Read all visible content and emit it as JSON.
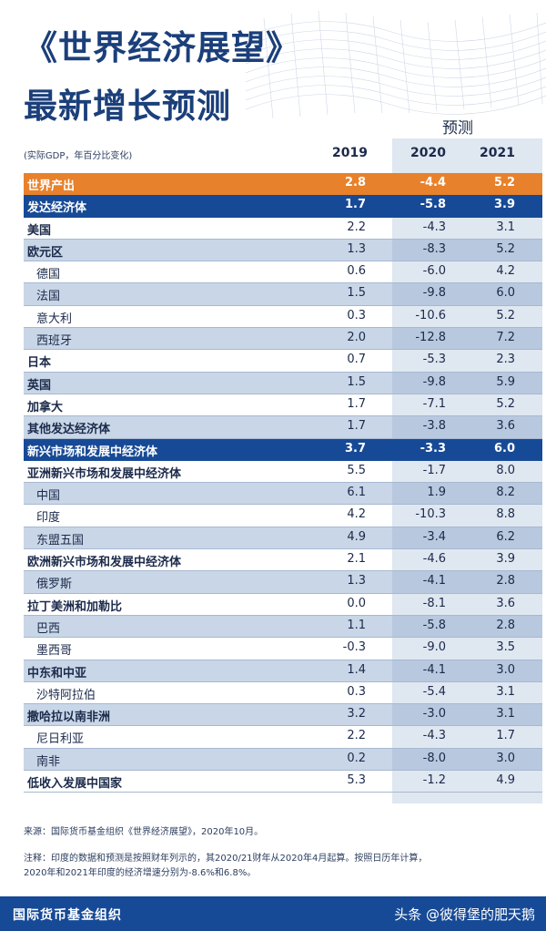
{
  "title_line1": "《世界经济展望》",
  "title_line2": "最新增长预测",
  "forecast_label": "预测",
  "unit_note": "(实际GDP，年百分比变化)",
  "chart_data": {
    "type": "table",
    "columns": [
      "2019",
      "2020",
      "2021"
    ],
    "rows": [
      {
        "label": "世界产出",
        "values": [
          "2.8",
          "-4.4",
          "5.2"
        ],
        "style": "world"
      },
      {
        "label": "发达经济体",
        "values": [
          "1.7",
          "-5.8",
          "3.9"
        ],
        "style": "group"
      },
      {
        "label": "美国",
        "values": [
          "2.2",
          "-4.3",
          "3.1"
        ],
        "style": "bold"
      },
      {
        "label": "欧元区",
        "values": [
          "1.3",
          "-8.3",
          "5.2"
        ],
        "style": "bold"
      },
      {
        "label": "德国",
        "values": [
          "0.6",
          "-6.0",
          "4.2"
        ],
        "style": "indent"
      },
      {
        "label": "法国",
        "values": [
          "1.5",
          "-9.8",
          "6.0"
        ],
        "style": "indent"
      },
      {
        "label": "意大利",
        "values": [
          "0.3",
          "-10.6",
          "5.2"
        ],
        "style": "indent"
      },
      {
        "label": "西班牙",
        "values": [
          "2.0",
          "-12.8",
          "7.2"
        ],
        "style": "indent"
      },
      {
        "label": "日本",
        "values": [
          "0.7",
          "-5.3",
          "2.3"
        ],
        "style": "bold"
      },
      {
        "label": "英国",
        "values": [
          "1.5",
          "-9.8",
          "5.9"
        ],
        "style": "bold"
      },
      {
        "label": "加拿大",
        "values": [
          "1.7",
          "-7.1",
          "5.2"
        ],
        "style": "bold"
      },
      {
        "label": "其他发达经济体",
        "values": [
          "1.7",
          "-3.8",
          "3.6"
        ],
        "style": "bold"
      },
      {
        "label": "新兴市场和发展中经济体",
        "values": [
          "3.7",
          "-3.3",
          "6.0"
        ],
        "style": "group"
      },
      {
        "label": "亚洲新兴市场和发展中经济体",
        "values": [
          "5.5",
          "-1.7",
          "8.0"
        ],
        "style": "bold"
      },
      {
        "label": "中国",
        "values": [
          "6.1",
          "1.9",
          "8.2"
        ],
        "style": "indent"
      },
      {
        "label": "印度",
        "values": [
          "4.2",
          "-10.3",
          "8.8"
        ],
        "style": "indent"
      },
      {
        "label": "东盟五国",
        "values": [
          "4.9",
          "-3.4",
          "6.2"
        ],
        "style": "indent"
      },
      {
        "label": "欧洲新兴市场和发展中经济体",
        "values": [
          "2.1",
          "-4.6",
          "3.9"
        ],
        "style": "bold"
      },
      {
        "label": "俄罗斯",
        "values": [
          "1.3",
          "-4.1",
          "2.8"
        ],
        "style": "indent"
      },
      {
        "label": "拉丁美洲和加勒比",
        "values": [
          "0.0",
          "-8.1",
          "3.6"
        ],
        "style": "bold"
      },
      {
        "label": "巴西",
        "values": [
          "1.1",
          "-5.8",
          "2.8"
        ],
        "style": "indent"
      },
      {
        "label": "墨西哥",
        "values": [
          "-0.3",
          "-9.0",
          "3.5"
        ],
        "style": "indent"
      },
      {
        "label": "中东和中亚",
        "values": [
          "1.4",
          "-4.1",
          "3.0"
        ],
        "style": "bold"
      },
      {
        "label": "沙特阿拉伯",
        "values": [
          "0.3",
          "-5.4",
          "3.1"
        ],
        "style": "indent"
      },
      {
        "label": "撒哈拉以南非洲",
        "values": [
          "3.2",
          "-3.0",
          "3.1"
        ],
        "style": "bold"
      },
      {
        "label": "尼日利亚",
        "values": [
          "2.2",
          "-4.3",
          "1.7"
        ],
        "style": "indent"
      },
      {
        "label": "南非",
        "values": [
          "0.2",
          "-8.0",
          "3.0"
        ],
        "style": "indent"
      },
      {
        "label": "低收入发展中国家",
        "values": [
          "5.3",
          "-1.2",
          "4.9"
        ],
        "style": "bold"
      }
    ]
  },
  "source": "来源：国际货币基金组织《世界经济展望》，2020年10月。",
  "note_line1": "注释：印度的数据和预测是按照财年列示的，其2020/21财年从2020年4月起算。按照日历年计算，",
  "note_line2": "2020年和2021年印度的经济增速分别为-8.6%和6.8%。",
  "footer_org": "国际货币基金组织",
  "watermark": "头条 @彼得堡的肥天鹅",
  "colors": {
    "title": "#1b3f7a",
    "world_row": "#e8812b",
    "group_row": "#174a96",
    "alt_row": "#c9d6e7",
    "forecast_band": "#dfe7f1"
  }
}
